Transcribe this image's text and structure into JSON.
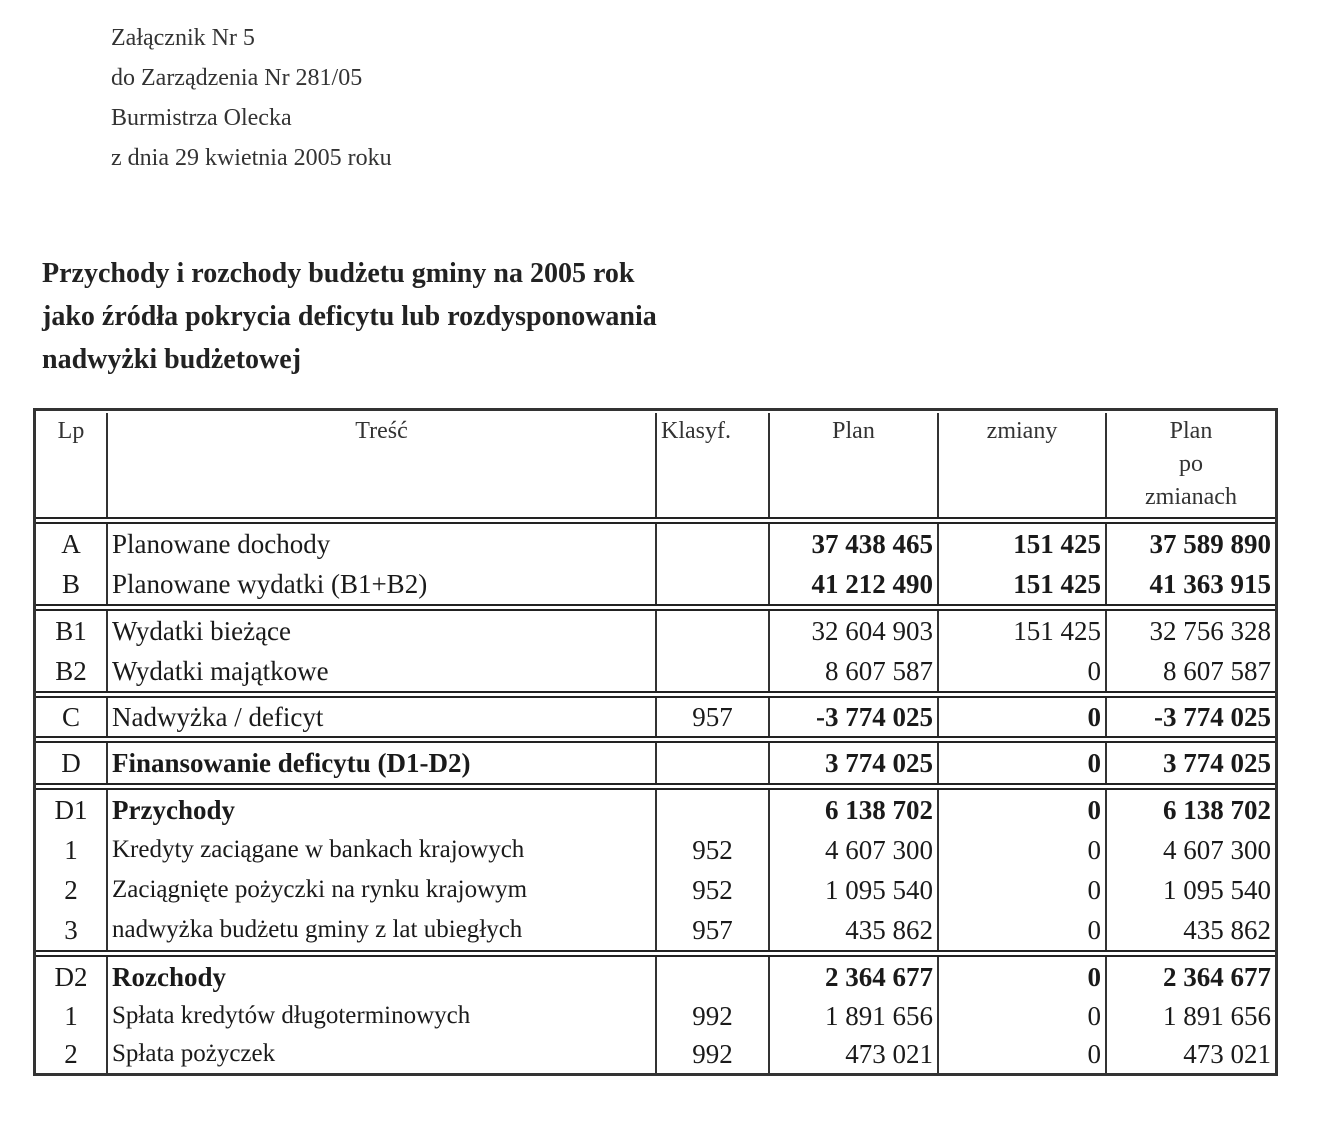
{
  "header_lines": [
    "Załącznik Nr 5",
    "do Zarządzenia Nr 281/05",
    "Burmistrza Olecka",
    "z dnia 29 kwietnia 2005 roku"
  ],
  "title_lines": [
    "Przychody i rozchody budżetu gminy na 2005 rok",
    "jako źródła pokrycia deficytu lub rozdysponowania",
    "nadwyżki budżetowej"
  ],
  "table": {
    "columns": [
      "Lp",
      "Treść",
      "Klasyf.",
      "Plan",
      "zmiany",
      "Plan\npo\nzmianach"
    ],
    "groups": [
      {
        "bold_numbers": true,
        "rows": [
          {
            "lp": "A",
            "tresc": "Planowane   dochody",
            "klasyf": "",
            "plan": "37 438 465",
            "zmiany": "151 425",
            "plan_po": "37 589 890"
          },
          {
            "lp": "B",
            "tresc": "Planowane wydatki (B1+B2)",
            "klasyf": "",
            "plan": "41 212 490",
            "zmiany": "151 425",
            "plan_po": "41 363 915"
          }
        ]
      },
      {
        "rows": [
          {
            "lp": "B1",
            "tresc": "Wydatki bieżące",
            "klasyf": "",
            "plan": "32 604 903",
            "zmiany": "151 425",
            "plan_po": "32 756 328"
          },
          {
            "lp": "B2",
            "tresc": "Wydatki majątkowe",
            "klasyf": "",
            "plan": "8 607 587",
            "zmiany": "0",
            "plan_po": "8 607 587"
          }
        ]
      },
      {
        "bold_numbers": true,
        "rows": [
          {
            "lp": "C",
            "tresc": "Nadwyżka / deficyt",
            "klasyf": "957",
            "plan": "-3 774 025",
            "zmiany": "0",
            "plan_po": "-3 774 025"
          }
        ]
      },
      {
        "bold_numbers": true,
        "bold_text": true,
        "rows": [
          {
            "lp": "D",
            "tresc": "Finansowanie deficytu (D1-D2)",
            "klasyf": "",
            "plan": "3 774 025",
            "zmiany": "0",
            "plan_po": "3 774 025"
          }
        ]
      },
      {
        "rows": [
          {
            "lp": "D1",
            "tresc": "Przychody",
            "klasyf": "",
            "plan": "6 138 702",
            "zmiany": "0",
            "plan_po": "6 138 702",
            "bold": true
          },
          {
            "lp": "1",
            "tresc": "Kredyty zaciągane w bankach krajowych",
            "klasyf": "952",
            "plan": "4 607 300",
            "zmiany": "0",
            "plan_po": "4 607 300"
          },
          {
            "lp": "2",
            "tresc": "Zaciągnięte pożyczki na rynku krajowym",
            "klasyf": "952",
            "plan": "1 095 540",
            "zmiany": "0",
            "plan_po": "1 095 540"
          },
          {
            "lp": "3",
            "tresc": "nadwyżka budżetu gminy z lat ubiegłych",
            "klasyf": "957",
            "plan": "435 862",
            "zmiany": "0",
            "plan_po": "435 862"
          }
        ]
      },
      {
        "rows": [
          {
            "lp": "D2",
            "tresc": "Rozchody",
            "klasyf": "",
            "plan": "2 364 677",
            "zmiany": "0",
            "plan_po": "2 364 677",
            "bold": true
          },
          {
            "lp": "1",
            "tresc": "Spłata kredytów długoterminowych",
            "klasyf": "992",
            "plan": "1 891 656",
            "zmiany": "0",
            "plan_po": "1 891 656"
          },
          {
            "lp": "2",
            "tresc": "Spłata  pożyczek",
            "klasyf": "992",
            "plan": "473 021",
            "zmiany": "0",
            "plan_po": "473 021"
          }
        ]
      }
    ]
  }
}
